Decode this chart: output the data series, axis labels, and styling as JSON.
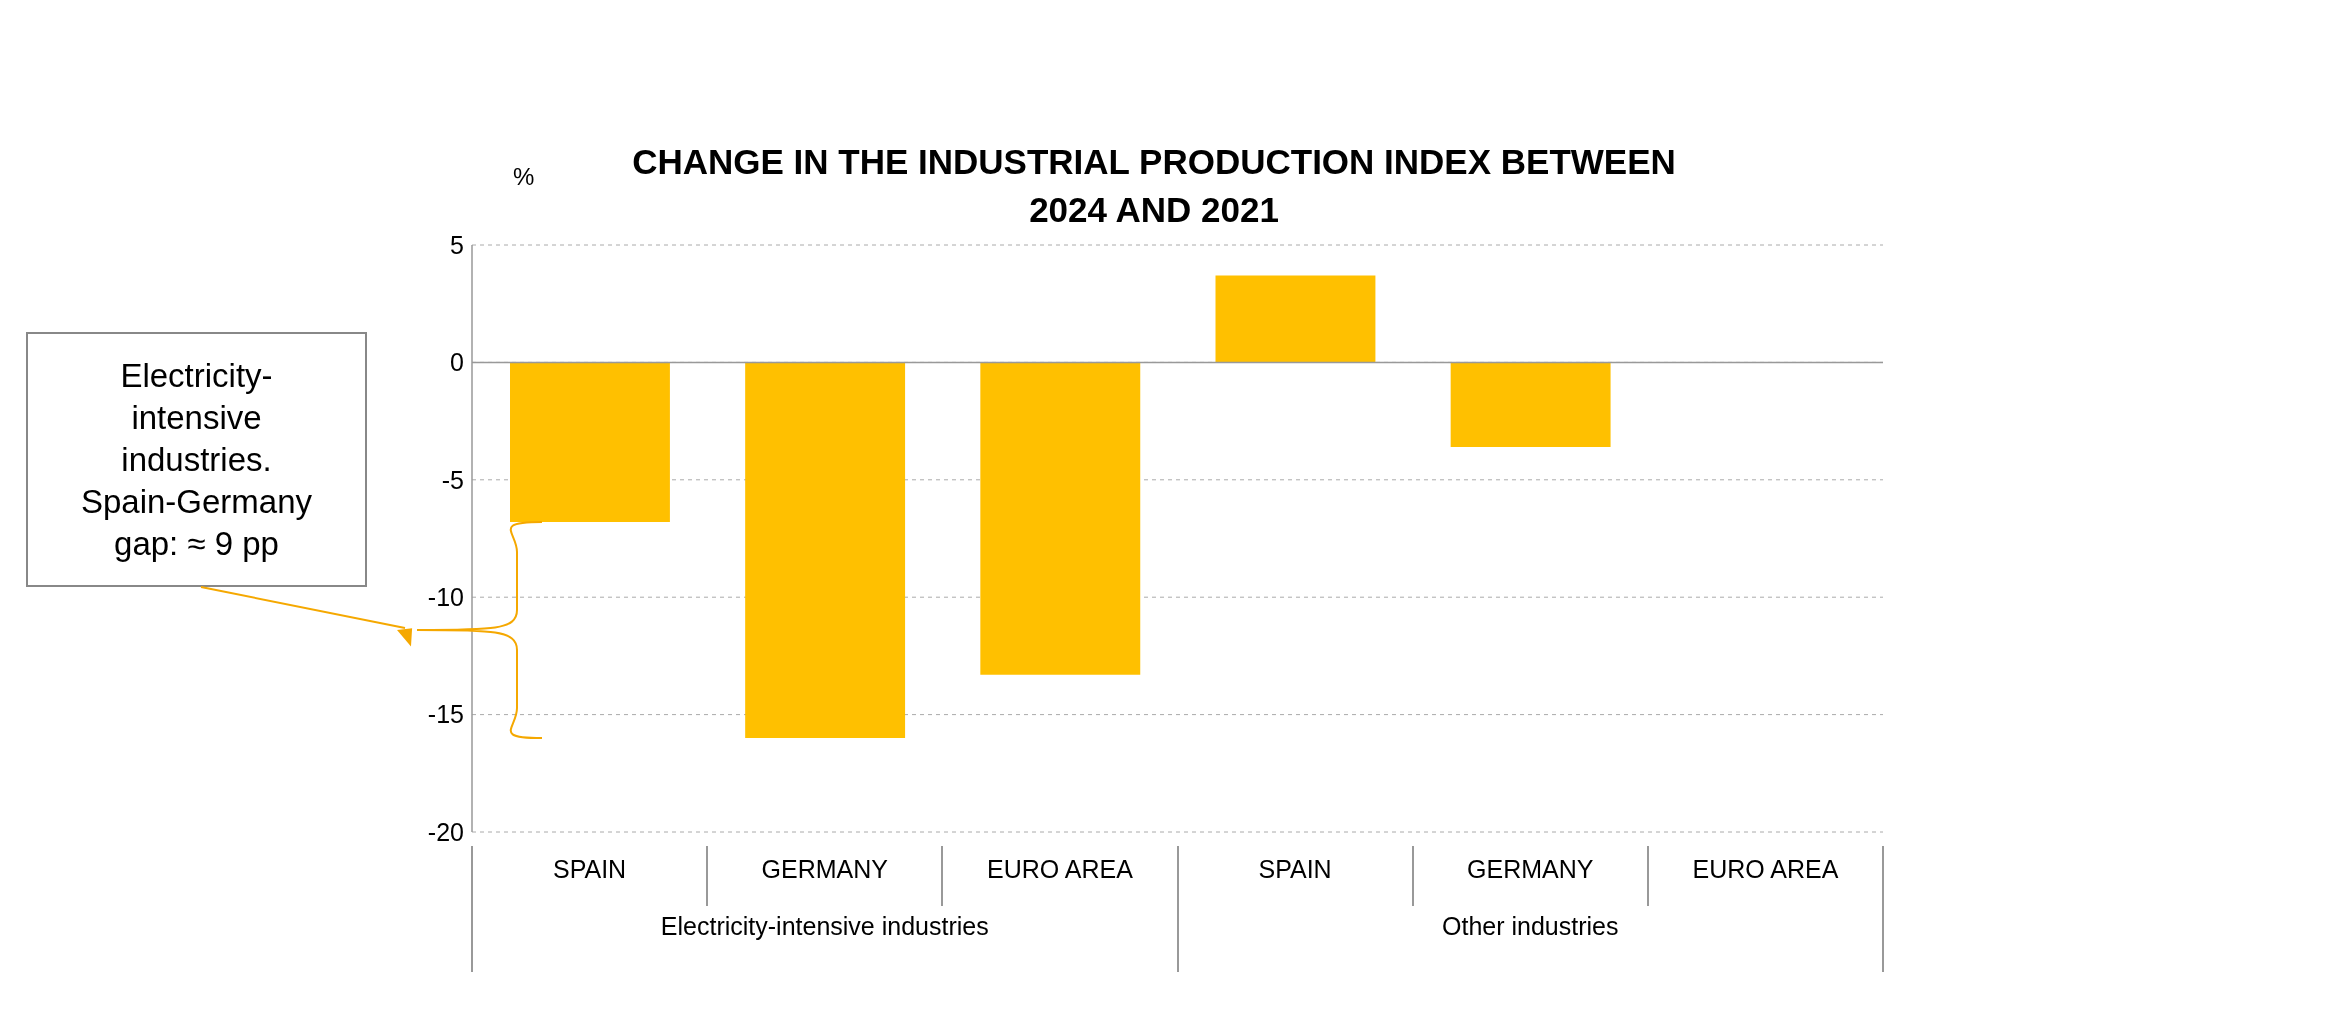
{
  "chart_data": {
    "type": "bar",
    "title": "CHANGE IN THE INDUSTRIAL PRODUCTION INDEX BETWEEN 2024 AND 2021",
    "ylabel": "%",
    "categories": [
      "SPAIN",
      "GERMANY",
      "EURO AREA",
      "SPAIN",
      "GERMANY",
      "EURO AREA"
    ],
    "values": [
      -6.8,
      -16,
      -13.3,
      3.7,
      -3.6,
      0
    ],
    "colors": [
      "#ffc000",
      "#ffc000",
      "#ffc000",
      "#ffc000",
      "#ffc000",
      "#ffc000"
    ],
    "ylim": [
      -20,
      5
    ],
    "yticks": [
      -20,
      -15,
      -10,
      -5,
      0,
      5
    ],
    "grid": "y",
    "annotations": [
      "Electricity-intensive industries",
      "Other industries",
      "Electricity-intensive industries. Spain-Germany gap: ≈ 9 pp"
    ]
  }
}
